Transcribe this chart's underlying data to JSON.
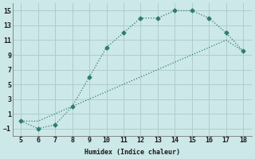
{
  "xlabel": "Humidex (Indice chaleur)",
  "x_curve": [
    5,
    6,
    7,
    8,
    9,
    10,
    11,
    12,
    13,
    14,
    15,
    16,
    17,
    18
  ],
  "y_curve": [
    0,
    -1,
    -0.5,
    2,
    6,
    10,
    12,
    14,
    14,
    15,
    15,
    14,
    12,
    9.5
  ],
  "x_diag": [
    5,
    6,
    7,
    8,
    9,
    10,
    11,
    12,
    13,
    14,
    15,
    16,
    17,
    18
  ],
  "y_diag": [
    0,
    0,
    1,
    2,
    3,
    4,
    5,
    6,
    7,
    8,
    9,
    10,
    11,
    9.5
  ],
  "xlim": [
    4.5,
    18.5
  ],
  "ylim": [
    -2,
    16
  ],
  "xticks": [
    5,
    6,
    7,
    8,
    9,
    10,
    11,
    12,
    13,
    14,
    15,
    16,
    17,
    18
  ],
  "yticks": [
    -1,
    1,
    3,
    5,
    7,
    9,
    11,
    13,
    15
  ],
  "line_color": "#2e7d6e",
  "bg_color": "#cce8e8",
  "grid_color": "#b0cccc",
  "marker": "D",
  "marker_size": 2.5,
  "line_width": 0.9
}
